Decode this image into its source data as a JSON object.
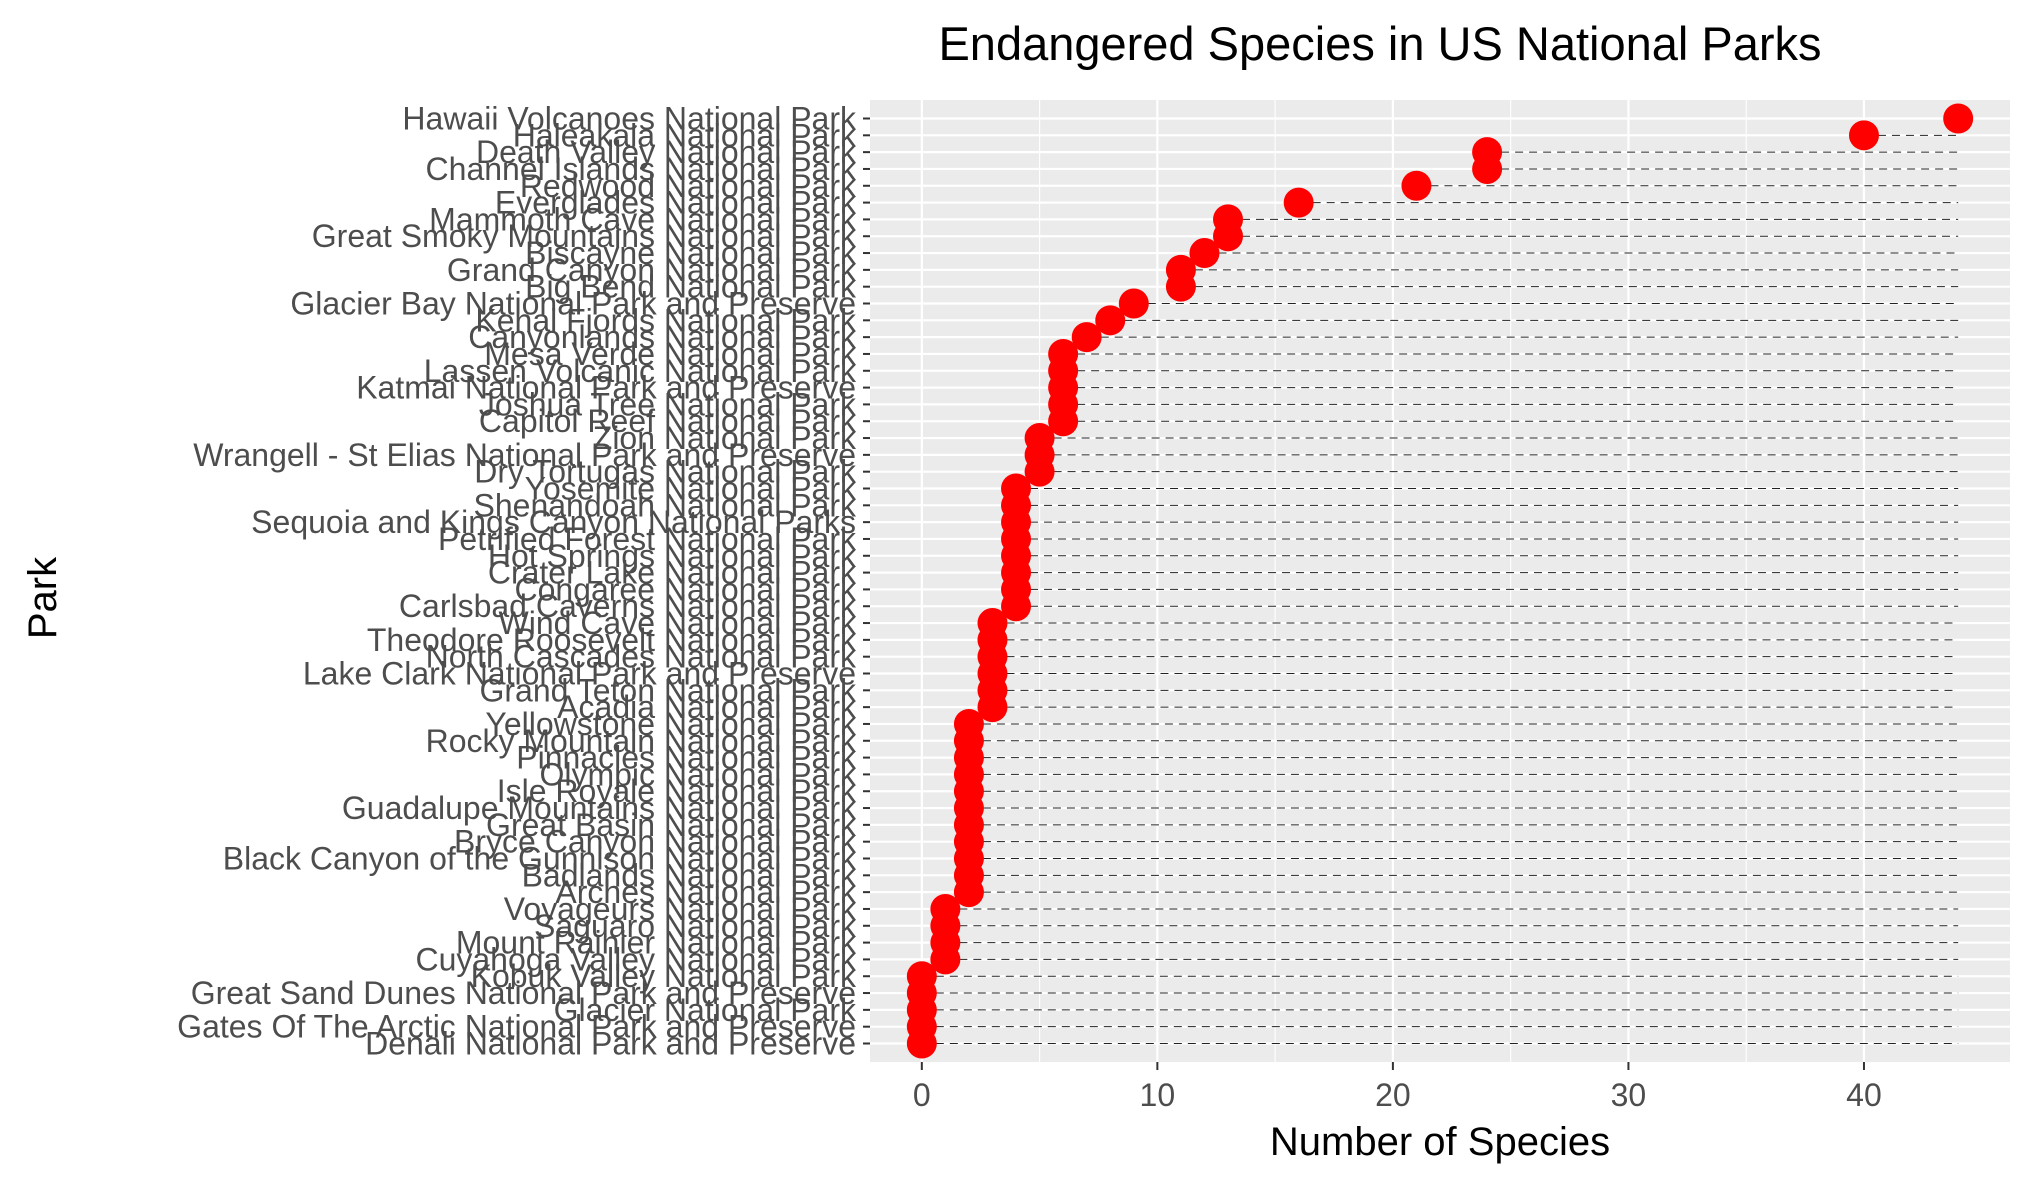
{
  "chart_data": {
    "type": "scatter",
    "title": "Endangered Species in US National Parks",
    "xlabel": "Number of Species",
    "ylabel": "Park",
    "xlim": [
      -2.2,
      46.2
    ],
    "xticks": [
      0,
      10,
      20,
      30,
      40
    ],
    "grid": true,
    "point_color": "#FF0000",
    "panel_background": "#EBEBEB",
    "segment_style": "dashed",
    "categories": [
      "Hawaii Volcanoes National Park",
      "Haleakala National Park",
      "Death Valley National Park",
      "Channel Islands National Park",
      "Redwood National Park",
      "Everglades National Park",
      "Mammoth Cave National Park",
      "Great Smoky Mountains National Park",
      "Biscayne National Park",
      "Grand Canyon National Park",
      "Big Bend National Park",
      "Glacier Bay National Park and Preserve",
      "Kenai Fjords National Park",
      "Canyonlands National Park",
      "Mesa Verde National Park",
      "Lassen Volcanic National Park",
      "Katmai National Park and Preserve",
      "Joshua Tree National Park",
      "Capitol Reef National Park",
      "Zion National Park",
      "Wrangell - St Elias National Park and Preserve",
      "Dry Tortugas National Park",
      "Yosemite National Park",
      "Shenandoah National Park",
      "Sequoia and Kings Canyon National Parks",
      "Petrified Forest National Park",
      "Hot Springs National Park",
      "Crater Lake National Park",
      "Congaree National Park",
      "Carlsbad Caverns National Park",
      "Wind Cave National Park",
      "Theodore Roosevelt National Park",
      "North Cascades National Park",
      "Lake Clark National Park and Preserve",
      "Grand Teton National Park",
      "Acadia National Park",
      "Yellowstone National Park",
      "Rocky Mountain National Park",
      "Pinnacles National Park",
      "Olympic National Park",
      "Isle Royale National Park",
      "Guadalupe Mountains National Park",
      "Great Basin National Park",
      "Bryce Canyon National Park",
      "Black Canyon of the Gunnison National Park",
      "Badlands National Park",
      "Arches National Park",
      "Voyageurs National Park",
      "Saguaro National Park",
      "Mount Rainier National Park",
      "Cuyahoga Valley National Park",
      "Kobuk Valley National Park",
      "Great Sand Dunes National Park and Preserve",
      "Glacier National Park",
      "Gates Of The Arctic National Park and Preserve",
      "Denali National Park and Preserve"
    ],
    "values": [
      44,
      40,
      24,
      24,
      21,
      16,
      13,
      13,
      12,
      11,
      11,
      9,
      8,
      7,
      6,
      6,
      6,
      6,
      6,
      5,
      5,
      5,
      4,
      4,
      4,
      4,
      4,
      4,
      4,
      4,
      3,
      3,
      3,
      3,
      3,
      3,
      2,
      2,
      2,
      2,
      2,
      2,
      2,
      2,
      2,
      2,
      2,
      1,
      1,
      1,
      1,
      0,
      0,
      0,
      0,
      0
    ]
  }
}
